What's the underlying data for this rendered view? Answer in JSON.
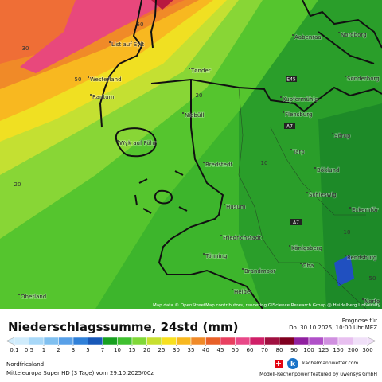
{
  "map": {
    "places": [
      "List auf Sylt",
      "Westerland",
      "Rantum",
      "Tønder",
      "Niebüll",
      "Wyk auf Föhr",
      "Bredstedt",
      "Husum",
      "Friedrichstadt",
      "Tönning",
      "Heide",
      "Oberland",
      "Brandmoor",
      "Aabenraa",
      "Nordborg",
      "Sønderborg",
      "Kupfermühle",
      "Flensburg",
      "Sörup",
      "Tarp",
      "Böklund",
      "Schleswig",
      "Eckernför",
      "Königsberg",
      "Oha",
      "Rendsburg",
      "Norto"
    ],
    "roads": [
      "E45",
      "A7",
      "A7"
    ],
    "contours": [
      50,
      30,
      50,
      20,
      20,
      10,
      10,
      50
    ],
    "attribution": "Map data © OpenStreetMap contributors, rendering GIScience Research Group @ Heidelberg University"
  },
  "legend": {
    "title": "Niederschlagssumme, 24std (mm)",
    "forecast_label": "Prognose für",
    "forecast_time": "Do. 30.10.2025, 10:00 Uhr MEZ",
    "ticks": [
      0.1,
      0.5,
      1,
      2,
      3,
      5,
      7,
      10,
      15,
      20,
      25,
      30,
      35,
      40,
      45,
      50,
      60,
      70,
      80,
      90,
      100,
      125,
      150,
      200,
      300
    ],
    "colors": [
      "#d0ecfc",
      "#a8d8f8",
      "#80c0f0",
      "#58a0e8",
      "#3080d8",
      "#1858b8",
      "#18a020",
      "#40c030",
      "#80d838",
      "#c8e030",
      "#f8e020",
      "#f8b820",
      "#f08a28",
      "#e86028",
      "#e84060",
      "#e84888",
      "#d02068",
      "#a01040",
      "#800020",
      "#9020a0",
      "#b050c8",
      "#d090e0",
      "#e8c0f0",
      "#f0e0f8"
    ]
  },
  "footer": {
    "region": "Nordfriesland",
    "model": "Mitteleuropa Super HD (3 Tage) vom 29.10.2025/00z",
    "brand": "kachelmannwetter.com",
    "sponsor": "Modell-Rechenpower featured by uwensys GmbH"
  }
}
